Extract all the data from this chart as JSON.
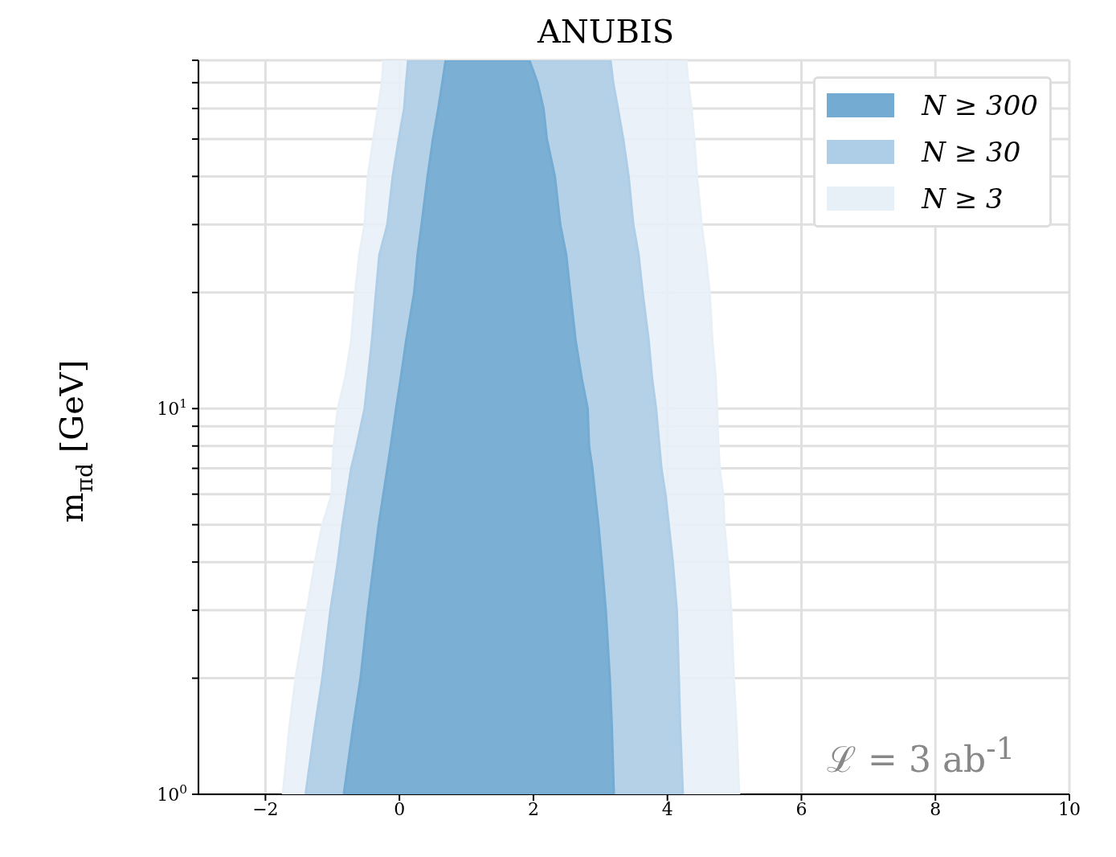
{
  "chart_data": {
    "type": "area",
    "title": "ANUBIS",
    "ylabel": "m$_{πd}$ [GeV]",
    "series": [
      {
        "name": "N ≥ 300",
        "color": "#74abd2",
        "x": [
          -0.83,
          -0.69,
          -0.58,
          -0.47,
          -0.38,
          -0.31,
          -0.24,
          -0.18,
          -0.13,
          -0.05,
          0.02,
          0.1,
          0.22,
          0.27,
          0.33,
          0.42,
          0.5,
          0.58,
          0.64,
          0.69,
          1.94,
          2.06,
          2.15,
          2.2,
          2.32,
          2.4,
          2.49,
          2.55,
          2.63,
          2.72,
          2.81,
          2.83,
          2.88,
          2.92,
          2.97,
          3.02,
          3.08,
          3.14,
          3.17,
          3.2
        ],
        "values": [
          1,
          1.5,
          2,
          3,
          4,
          5,
          6,
          7,
          8,
          10,
          12,
          15,
          20,
          25,
          30,
          40,
          50,
          60,
          70,
          80,
          80,
          70,
          60,
          50,
          40,
          30,
          25,
          20,
          15,
          12,
          10,
          8,
          7,
          6,
          5,
          4,
          3,
          2,
          1.5,
          1
        ]
      },
      {
        "name": "N ≥ 30",
        "color": "#aecde6",
        "x": [
          -1.4,
          -1.26,
          -1.15,
          -1.03,
          -0.92,
          -0.85,
          -0.78,
          -0.72,
          -0.64,
          -0.52,
          -0.47,
          -0.41,
          -0.35,
          -0.3,
          -0.18,
          -0.1,
          -0.01,
          0.07,
          0.1,
          0.13,
          3.15,
          3.19,
          3.26,
          3.34,
          3.42,
          3.49,
          3.57,
          3.63,
          3.72,
          3.77,
          3.83,
          3.88,
          3.91,
          3.97,
          4.02,
          4.08,
          4.14,
          4.17,
          4.19,
          4.23
        ],
        "values": [
          1,
          1.5,
          2,
          3,
          4,
          5,
          6,
          7,
          8,
          10,
          12,
          15,
          20,
          25,
          30,
          40,
          50,
          60,
          70,
          80,
          80,
          70,
          60,
          50,
          40,
          30,
          25,
          20,
          15,
          12,
          10,
          8,
          7,
          6,
          5,
          4,
          3,
          2,
          1.5,
          1
        ]
      },
      {
        "name": "N ≥ 3",
        "color": "#e8f0f7",
        "x": [
          -1.74,
          -1.64,
          -1.55,
          -1.38,
          -1.26,
          -1.15,
          -1.01,
          -1.0,
          -0.98,
          -0.92,
          -0.81,
          -0.72,
          -0.66,
          -0.6,
          -0.52,
          -0.47,
          -0.39,
          -0.32,
          -0.26,
          -0.24,
          4.28,
          4.31,
          4.36,
          4.4,
          4.44,
          4.51,
          4.57,
          4.63,
          4.67,
          4.72,
          4.74,
          4.76,
          4.78,
          4.83,
          4.85,
          4.9,
          4.95,
          4.99,
          5.03,
          5.07
        ],
        "values": [
          1,
          1.5,
          2,
          3,
          4,
          5,
          6,
          7,
          8,
          10,
          12,
          15,
          20,
          25,
          30,
          40,
          50,
          60,
          70,
          80,
          80,
          70,
          60,
          50,
          40,
          30,
          25,
          20,
          15,
          12,
          10,
          8,
          7,
          6,
          5,
          4,
          3,
          2,
          1.5,
          1
        ]
      }
    ],
    "xlim": [
      -3,
      10
    ],
    "xticks": [
      {
        "value": -2,
        "label": "−2"
      },
      0,
      2,
      4,
      6,
      8,
      10
    ],
    "ylim": [
      1,
      80
    ],
    "log": true,
    "yticks": [
      {
        "value": 1,
        "label": "10$^{0}$"
      },
      {
        "value": 2,
        "label": null
      },
      {
        "value": 3,
        "label": null
      },
      {
        "value": 4,
        "label": null
      },
      {
        "value": 5,
        "label": null
      },
      {
        "value": 6,
        "label": null
      },
      {
        "value": 7,
        "label": null
      },
      {
        "value": 8,
        "label": null
      },
      {
        "value": 9,
        "label": null
      },
      {
        "value": 10,
        "label": "10$^{1}$"
      },
      {
        "value": 20,
        "label": null
      },
      {
        "value": 30,
        "label": null
      },
      {
        "value": 40,
        "label": null
      },
      {
        "value": 50,
        "label": null
      },
      {
        "value": 60,
        "label": null
      },
      {
        "value": 70,
        "label": null
      },
      {
        "value": 80,
        "label": null
      }
    ],
    "grid": true,
    "legend": "top right",
    "annotations": [
      "ℒ = 3 ab$^{-1}$"
    ]
  }
}
